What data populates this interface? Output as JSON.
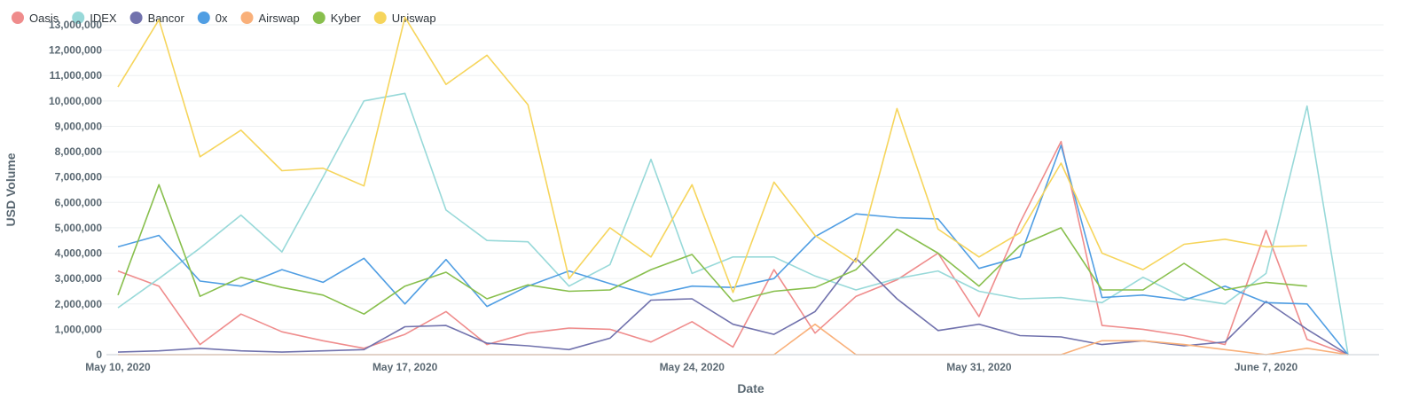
{
  "chart_data": {
    "type": "line",
    "xlabel": "Date",
    "ylabel": "USD Volume",
    "ylim": [
      0,
      13000000
    ],
    "y_ticks": [
      0,
      1000000,
      2000000,
      3000000,
      4000000,
      5000000,
      6000000,
      7000000,
      8000000,
      9000000,
      10000000,
      11000000,
      12000000,
      13000000
    ],
    "y_tick_labels": [
      "0",
      "1,000,000",
      "2,000,000",
      "3,000,000",
      "4,000,000",
      "5,000,000",
      "6,000,000",
      "7,000,000",
      "8,000,000",
      "9,000,000",
      "10,000,000",
      "11,000,000",
      "12,000,000",
      "13,000,000"
    ],
    "x_start": "2020-05-10",
    "x_end": "2020-06-09",
    "x_ticks": [
      {
        "date": "2020-05-10",
        "label": "May 10, 2020"
      },
      {
        "date": "2020-05-17",
        "label": "May 17, 2020"
      },
      {
        "date": "2020-05-24",
        "label": "May 24, 2020"
      },
      {
        "date": "2020-05-31",
        "label": "May 31, 2020"
      },
      {
        "date": "2020-06-07",
        "label": "June 7, 2020"
      }
    ],
    "grid": "horizontal",
    "legend_position": "top-left",
    "series": [
      {
        "name": "Oasis",
        "color": "#ef8c8c",
        "values": [
          3300000,
          2700000,
          400000,
          1600000,
          900000,
          550000,
          250000,
          800000,
          1700000,
          400000,
          850000,
          1050000,
          1000000,
          500000,
          1300000,
          300000,
          3350000,
          850000,
          2300000,
          2950000,
          4000000,
          1500000,
          5200000,
          8400000,
          1150000,
          1000000,
          750000,
          400000,
          4900000,
          600000,
          0
        ]
      },
      {
        "name": "IDEX",
        "color": "#98d9d9",
        "values": [
          1850000,
          3000000,
          4200000,
          5500000,
          4050000,
          7000000,
          10000000,
          10300000,
          5700000,
          4500000,
          4450000,
          2700000,
          3550000,
          7700000,
          3200000,
          3850000,
          3850000,
          3100000,
          2550000,
          3000000,
          3300000,
          2500000,
          2200000,
          2250000,
          2050000,
          3050000,
          2250000,
          2000000,
          3200000,
          9800000,
          0
        ]
      },
      {
        "name": "Bancor",
        "color": "#7172ad",
        "values": [
          100000,
          150000,
          250000,
          150000,
          100000,
          150000,
          200000,
          1100000,
          1150000,
          450000,
          350000,
          200000,
          650000,
          2150000,
          2200000,
          1200000,
          800000,
          1700000,
          3800000,
          2200000,
          950000,
          1200000,
          750000,
          700000,
          400000,
          550000,
          350000,
          500000,
          2100000,
          1000000,
          0
        ]
      },
      {
        "name": "0x",
        "color": "#509ee3",
        "values": [
          4250000,
          4700000,
          2900000,
          2700000,
          3350000,
          2850000,
          3800000,
          2000000,
          3750000,
          1900000,
          2700000,
          3300000,
          2800000,
          2350000,
          2700000,
          2650000,
          3000000,
          4650000,
          5550000,
          5400000,
          5350000,
          3400000,
          3850000,
          8250000,
          2250000,
          2350000,
          2150000,
          2700000,
          2050000,
          2000000,
          0
        ]
      },
      {
        "name": "Airswap",
        "color": "#f9b07a",
        "values": [
          0,
          0,
          0,
          0,
          0,
          0,
          0,
          0,
          0,
          0,
          0,
          0,
          0,
          0,
          0,
          0,
          0,
          1200000,
          0,
          0,
          0,
          0,
          0,
          0,
          550000,
          550000,
          400000,
          200000,
          0,
          250000,
          0
        ]
      },
      {
        "name": "Kyber",
        "color": "#88bf4d",
        "values": [
          2350000,
          6700000,
          2300000,
          3050000,
          2650000,
          2350000,
          1600000,
          2700000,
          3250000,
          2200000,
          2750000,
          2500000,
          2550000,
          3350000,
          3950000,
          2100000,
          2500000,
          2650000,
          3350000,
          4950000,
          4000000,
          2700000,
          4300000,
          5000000,
          2550000,
          2550000,
          3600000,
          2550000,
          2850000,
          2700000,
          null
        ]
      },
      {
        "name": "Uniswap",
        "color": "#f6d55c",
        "values": [
          10550000,
          13200000,
          7800000,
          8850000,
          7250000,
          7350000,
          6650000,
          13300000,
          10650000,
          11800000,
          9850000,
          3000000,
          5000000,
          3850000,
          6700000,
          2450000,
          6800000,
          4700000,
          3650000,
          9700000,
          4950000,
          3850000,
          4800000,
          7550000,
          4000000,
          3350000,
          4350000,
          4550000,
          4250000,
          4300000,
          null
        ]
      }
    ]
  }
}
